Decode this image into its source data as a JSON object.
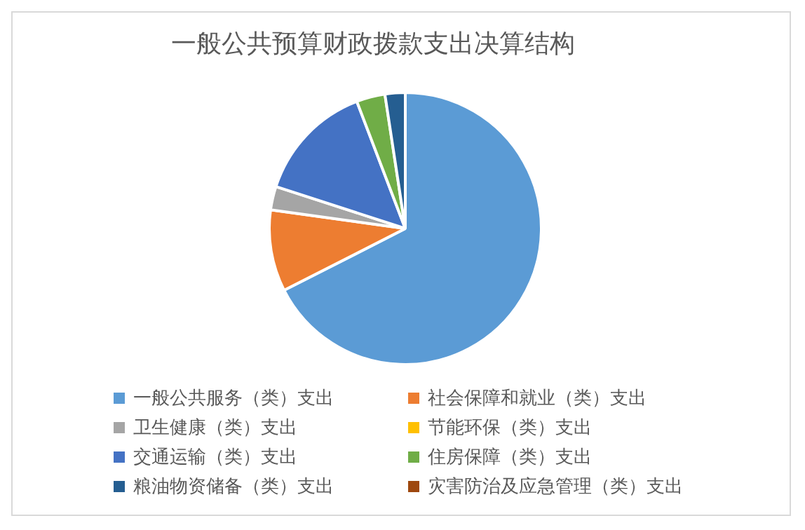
{
  "chart_data": {
    "type": "pie",
    "title": "一般公共预算财政拨款支出决算结构",
    "categories": [
      "一般公共服务（类）支出",
      "社会保障和就业（类）支出",
      "卫生健康（类）支出",
      "节能环保（类）支出",
      "交通运输（类）支出",
      "住房保障（类）支出",
      "粮油物资储备（类）支出",
      "灾害防治及应急管理（类）支出"
    ],
    "values": [
      67.5,
      9.7,
      2.8,
      0,
      14.2,
      3.4,
      2.4,
      0
    ],
    "colors": [
      "#5b9bd5",
      "#ed7d31",
      "#a5a5a5",
      "#ffc000",
      "#4472c4",
      "#70ad47",
      "#255e91",
      "#9e480e"
    ],
    "legend": "bottom"
  }
}
